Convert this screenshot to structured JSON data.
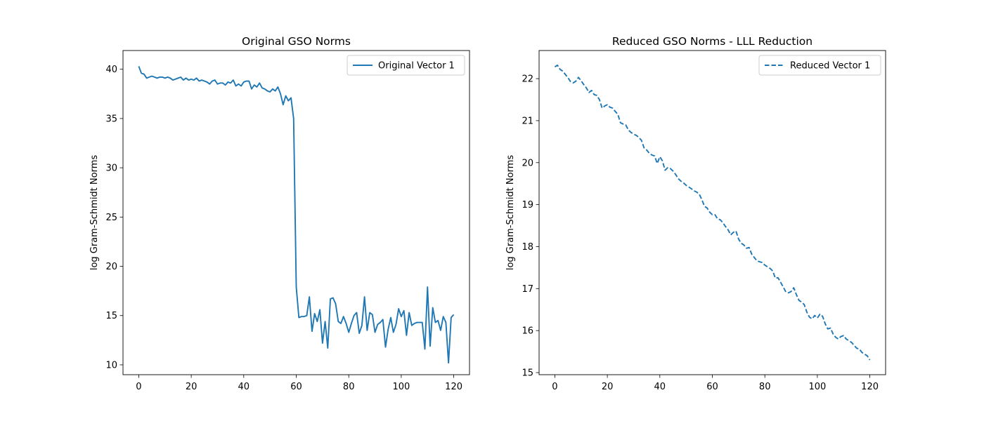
{
  "chart_data": [
    {
      "type": "line",
      "title": "Original GSO Norms",
      "xlabel": "",
      "ylabel": "log Gram-Schmidt Norms",
      "xlim": [
        -6,
        126
      ],
      "ylim": [
        9.0,
        41.9
      ],
      "xticks": [
        0,
        20,
        40,
        60,
        80,
        100,
        120
      ],
      "xtick_labels": [
        "0",
        "20",
        "40",
        "60",
        "80",
        "100",
        "120"
      ],
      "yticks": [
        10,
        15,
        20,
        25,
        30,
        35,
        40
      ],
      "ytick_labels": [
        "10",
        "15",
        "20",
        "25",
        "30",
        "35",
        "40"
      ],
      "grid": false,
      "legend_position": "top-right",
      "series": [
        {
          "name": "Original Vector 1",
          "style": "solid",
          "color": "#1f77b4",
          "x": [
            0,
            1,
            2,
            3,
            4,
            5,
            6,
            7,
            8,
            9,
            10,
            11,
            12,
            13,
            14,
            15,
            16,
            17,
            18,
            19,
            20,
            21,
            22,
            23,
            24,
            25,
            26,
            27,
            28,
            29,
            30,
            31,
            32,
            33,
            34,
            35,
            36,
            37,
            38,
            39,
            40,
            41,
            42,
            43,
            44,
            45,
            46,
            47,
            48,
            49,
            50,
            51,
            52,
            53,
            54,
            55,
            56,
            57,
            58,
            59,
            60,
            61,
            62,
            63,
            64,
            65,
            66,
            67,
            68,
            69,
            70,
            71,
            72,
            73,
            74,
            75,
            76,
            77,
            78,
            79,
            80,
            81,
            82,
            83,
            84,
            85,
            86,
            87,
            88,
            89,
            90,
            91,
            92,
            93,
            94,
            95,
            96,
            97,
            98,
            99,
            100,
            101,
            102,
            103,
            104,
            105,
            106,
            107,
            108,
            109,
            110,
            111,
            112,
            113,
            114,
            115,
            116,
            117,
            118,
            119,
            120
          ],
          "values": [
            40.3,
            39.6,
            39.5,
            39.1,
            39.2,
            39.3,
            39.2,
            39.1,
            39.2,
            39.2,
            39.1,
            39.2,
            39.1,
            38.9,
            39.0,
            39.1,
            39.2,
            38.9,
            39.1,
            38.9,
            39.0,
            38.9,
            39.1,
            38.8,
            38.9,
            38.8,
            38.7,
            38.5,
            38.8,
            38.9,
            38.5,
            38.6,
            38.6,
            38.4,
            38.7,
            38.6,
            38.9,
            38.3,
            38.5,
            38.3,
            38.7,
            38.8,
            38.8,
            38.0,
            38.4,
            38.2,
            38.6,
            38.1,
            38.0,
            37.8,
            37.7,
            38.0,
            37.8,
            38.2,
            37.5,
            36.4,
            37.3,
            36.8,
            37.1,
            35.0,
            17.9,
            14.8,
            14.9,
            14.9,
            15.0,
            16.9,
            13.4,
            15.2,
            14.4,
            15.6,
            12.2,
            14.4,
            11.7,
            16.7,
            16.8,
            16.2,
            14.4,
            14.2,
            14.9,
            14.2,
            13.3,
            14.2,
            15.0,
            15.3,
            13.2,
            14.0,
            16.9,
            13.5,
            15.3,
            15.1,
            13.3,
            14.1,
            14.3,
            14.6,
            11.8,
            13.6,
            14.8,
            13.3,
            14.1,
            15.7,
            14.9,
            15.5,
            13.0,
            15.3,
            14.0,
            14.2,
            14.3,
            14.3,
            14.3,
            11.6,
            17.9,
            11.9,
            15.8,
            14.3,
            14.5,
            13.5,
            14.9,
            14.3,
            10.2,
            14.8,
            15.1
          ]
        }
      ]
    },
    {
      "type": "line",
      "title": "Reduced GSO Norms - LLL Reduction",
      "xlabel": "",
      "ylabel": "log Gram-Schmidt Norms",
      "xlim": [
        -6,
        126
      ],
      "ylim": [
        14.95,
        22.67
      ],
      "xticks": [
        0,
        20,
        40,
        60,
        80,
        100,
        120
      ],
      "xtick_labels": [
        "0",
        "20",
        "40",
        "60",
        "80",
        "100",
        "120"
      ],
      "yticks": [
        15,
        16,
        17,
        18,
        19,
        20,
        21,
        22
      ],
      "ytick_labels": [
        "15",
        "16",
        "17",
        "18",
        "19",
        "20",
        "21",
        "22"
      ],
      "grid": false,
      "legend_position": "top-right",
      "series": [
        {
          "name": "Reduced Vector 1",
          "style": "dashed",
          "color": "#1f77b4",
          "x": [
            0,
            1,
            2,
            3,
            4,
            5,
            6,
            7,
            8,
            9,
            10,
            11,
            12,
            13,
            14,
            15,
            16,
            17,
            18,
            19,
            20,
            21,
            22,
            23,
            24,
            25,
            26,
            27,
            28,
            29,
            30,
            31,
            32,
            33,
            34,
            35,
            36,
            37,
            38,
            39,
            40,
            41,
            42,
            43,
            44,
            45,
            46,
            47,
            48,
            49,
            50,
            51,
            52,
            53,
            54,
            55,
            56,
            57,
            58,
            59,
            60,
            61,
            62,
            63,
            64,
            65,
            66,
            67,
            68,
            69,
            70,
            71,
            72,
            73,
            74,
            75,
            76,
            77,
            78,
            79,
            80,
            81,
            82,
            83,
            84,
            85,
            86,
            87,
            88,
            89,
            90,
            91,
            92,
            93,
            94,
            95,
            96,
            97,
            98,
            99,
            100,
            101,
            102,
            103,
            104,
            105,
            106,
            107,
            108,
            109,
            110,
            111,
            112,
            113,
            114,
            115,
            116,
            117,
            118,
            119,
            120
          ],
          "values": [
            22.28,
            22.32,
            22.22,
            22.18,
            22.1,
            22.02,
            21.93,
            21.9,
            21.94,
            22.03,
            21.95,
            21.86,
            21.78,
            21.67,
            21.72,
            21.62,
            21.6,
            21.5,
            21.3,
            21.35,
            21.38,
            21.32,
            21.3,
            21.22,
            21.15,
            20.95,
            20.92,
            20.9,
            20.78,
            20.72,
            20.68,
            20.65,
            20.6,
            20.53,
            20.35,
            20.3,
            20.22,
            20.18,
            20.16,
            19.98,
            20.14,
            20.04,
            19.82,
            19.88,
            19.86,
            19.8,
            19.72,
            19.62,
            19.56,
            19.52,
            19.46,
            19.42,
            19.38,
            19.33,
            19.3,
            19.25,
            19.12,
            18.96,
            18.92,
            18.82,
            18.76,
            18.76,
            18.66,
            18.64,
            18.57,
            18.48,
            18.4,
            18.28,
            18.34,
            18.37,
            18.18,
            18.08,
            18.04,
            17.96,
            17.98,
            17.82,
            17.74,
            17.66,
            17.64,
            17.62,
            17.56,
            17.52,
            17.48,
            17.42,
            17.25,
            17.26,
            17.15,
            17.04,
            16.92,
            16.9,
            16.93,
            17.02,
            16.86,
            16.72,
            16.68,
            16.62,
            16.44,
            16.32,
            16.28,
            16.36,
            16.3,
            16.39,
            16.34,
            16.16,
            16.04,
            16.06,
            15.92,
            15.84,
            15.8,
            15.86,
            15.88,
            15.8,
            15.76,
            15.72,
            15.65,
            15.58,
            15.56,
            15.48,
            15.44,
            15.4,
            15.3
          ]
        }
      ]
    }
  ]
}
